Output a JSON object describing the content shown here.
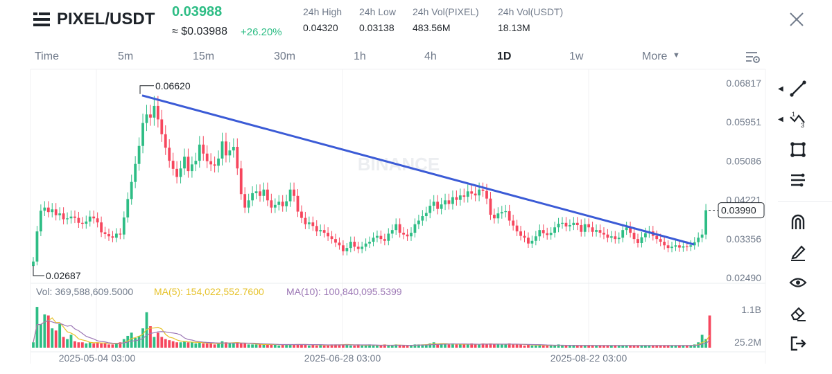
{
  "header": {
    "pair": "PIXEL/USDT",
    "last_price": "0.03988",
    "usd_price": "≈ $0.03988",
    "change": "+26.20%",
    "stats": [
      {
        "label": "24h High",
        "value": "0.04320"
      },
      {
        "label": "24h Low",
        "value": "0.03138"
      },
      {
        "label": "24h Vol(PIXEL)",
        "value": "483.56M"
      },
      {
        "label": "24h Vol(USDT)",
        "value": "18.13M"
      }
    ]
  },
  "timeframes": [
    "Time",
    "5m",
    "15m",
    "30m",
    "1h",
    "4h",
    "1D",
    "1w",
    "More"
  ],
  "active_timeframe": "1D",
  "price_axis": [
    "0.06817",
    "0.05951",
    "0.05086",
    "0.04221",
    "0.03356",
    "0.02490"
  ],
  "current_price_tag": "0.03990",
  "annotations": {
    "high": "0.06620",
    "low": "0.02687"
  },
  "watermark": "BINANCE",
  "volume": {
    "vol": "Vol: 369,588,609.5000",
    "ma5": "MA(5): 154,022,552.7600",
    "ma10": "MA(10): 100,840,095.5399",
    "axis": [
      "1.1B",
      "25.2M"
    ]
  },
  "date_axis": [
    "2025-05-04 03:00",
    "2025-06-28 03:00",
    "2025-08-22 03:00"
  ],
  "toolbar": [
    "trendline-tool",
    "fibonacci-tool",
    "rectangle-tool",
    "parallel-lines-tool",
    "magnet-tool",
    "pencil-tool",
    "eye-tool",
    "eraser-tool",
    "exit-tool"
  ],
  "colors": {
    "up": "#2ebd85",
    "down": "#f6465d",
    "trend": "#3b5bd6",
    "ma5": "#e6c229",
    "ma10": "#9c77b5"
  },
  "chart_data": {
    "type": "candlestick",
    "ylim": [
      0.0249,
      0.06817
    ],
    "trendline": [
      {
        "x": "2025-04-29",
        "y": 0.0662
      },
      {
        "x": "2025-09-14",
        "y": 0.0326
      }
    ],
    "closes": [
      0.0285,
      0.0352,
      0.0398,
      0.0405,
      0.0395,
      0.0401,
      0.0388,
      0.0392,
      0.0379,
      0.0381,
      0.0385,
      0.0382,
      0.0371,
      0.0369,
      0.0374,
      0.0385,
      0.0381,
      0.0372,
      0.035,
      0.0346,
      0.0341,
      0.0338,
      0.0347,
      0.0345,
      0.0383,
      0.0424,
      0.0462,
      0.0502,
      0.0542,
      0.0593,
      0.0612,
      0.0605,
      0.0631,
      0.0601,
      0.0568,
      0.0538,
      0.0509,
      0.0491,
      0.0473,
      0.0492,
      0.0518,
      0.0486,
      0.0501,
      0.0509,
      0.0545,
      0.0525,
      0.0508,
      0.0501,
      0.0498,
      0.0514,
      0.0552,
      0.0521,
      0.0532,
      0.054,
      0.0492,
      0.0435,
      0.0405,
      0.0421,
      0.0437,
      0.0441,
      0.0431,
      0.0445,
      0.0421,
      0.0405,
      0.0411,
      0.0418,
      0.0408,
      0.0419,
      0.0445,
      0.0431,
      0.0396,
      0.0382,
      0.0368,
      0.0372,
      0.0364,
      0.0352,
      0.0355,
      0.0349,
      0.0341,
      0.0335,
      0.0327,
      0.0321,
      0.0308,
      0.0315,
      0.0329,
      0.0318,
      0.0313,
      0.0318,
      0.0325,
      0.0329,
      0.0338,
      0.0342,
      0.0335,
      0.0331,
      0.0347,
      0.0355,
      0.0368,
      0.0349,
      0.0345,
      0.0341,
      0.0349,
      0.0368,
      0.0376,
      0.0386,
      0.0393,
      0.0409,
      0.0418,
      0.0402,
      0.0412,
      0.0421,
      0.0413,
      0.0428,
      0.0422,
      0.0432,
      0.0429,
      0.0441,
      0.0436,
      0.0432,
      0.0445,
      0.0442,
      0.0425,
      0.0389,
      0.0381,
      0.0392,
      0.0395,
      0.0397,
      0.0376,
      0.0365,
      0.0352,
      0.0342,
      0.0338,
      0.0325,
      0.0331,
      0.0341,
      0.0355,
      0.0348,
      0.0344,
      0.0349,
      0.0361,
      0.0369,
      0.0371,
      0.0363,
      0.0366,
      0.0371,
      0.0366,
      0.0351,
      0.0368,
      0.0361,
      0.0351,
      0.0355,
      0.0349,
      0.0345,
      0.0338,
      0.0341,
      0.0335,
      0.0338,
      0.0355,
      0.0361,
      0.0349,
      0.0335,
      0.0326,
      0.0339,
      0.0348,
      0.0352,
      0.0342,
      0.0335,
      0.0329,
      0.0321,
      0.0315,
      0.0318,
      0.0321,
      0.0316,
      0.0319,
      0.0318,
      0.0321,
      0.0328,
      0.0338,
      0.0345,
      0.0399
    ],
    "volumes": [
      0.05,
      0.38,
      0.22,
      0.31,
      0.3,
      0.18,
      0.16,
      0.22,
      0.1,
      0.08,
      0.12,
      0.06,
      0.05,
      0.05,
      0.04,
      0.05,
      0.04,
      0.05,
      0.04,
      0.04,
      0.03,
      0.03,
      0.04,
      0.05,
      0.08,
      0.11,
      0.14,
      0.09,
      0.11,
      0.18,
      0.33,
      0.2,
      0.1,
      0.14,
      0.1,
      0.08,
      0.07,
      0.06,
      0.05,
      0.05,
      0.06,
      0.05,
      0.05,
      0.04,
      0.05,
      0.04,
      0.04,
      0.04,
      0.03,
      0.04,
      0.06,
      0.05,
      0.04,
      0.04,
      0.05,
      0.04,
      0.04,
      0.03,
      0.03,
      0.03,
      0.03,
      0.03,
      0.03,
      0.03,
      0.03,
      0.02,
      0.03,
      0.03,
      0.03,
      0.03,
      0.03,
      0.03,
      0.03,
      0.02,
      0.03,
      0.02,
      0.03,
      0.02,
      0.02,
      0.03,
      0.03,
      0.03,
      0.03,
      0.03,
      0.02,
      0.02,
      0.03,
      0.02,
      0.02,
      0.03,
      0.02,
      0.02,
      0.02,
      0.03,
      0.02,
      0.02,
      0.03,
      0.02,
      0.02,
      0.02,
      0.02,
      0.03,
      0.03,
      0.03,
      0.03,
      0.04,
      0.05,
      0.03,
      0.04,
      0.03,
      0.03,
      0.04,
      0.03,
      0.03,
      0.03,
      0.03,
      0.04,
      0.03,
      0.03,
      0.04,
      0.03,
      0.04,
      0.03,
      0.03,
      0.03,
      0.03,
      0.04,
      0.03,
      0.03,
      0.03,
      0.02,
      0.03,
      0.02,
      0.02,
      0.03,
      0.02,
      0.02,
      0.02,
      0.02,
      0.03,
      0.02,
      0.02,
      0.02,
      0.02,
      0.02,
      0.02,
      0.02,
      0.02,
      0.02,
      0.02,
      0.02,
      0.02,
      0.02,
      0.02,
      0.02,
      0.02,
      0.02,
      0.02,
      0.02,
      0.02,
      0.02,
      0.02,
      0.02,
      0.02,
      0.02,
      0.02,
      0.02,
      0.02,
      0.02,
      0.02,
      0.02,
      0.02,
      0.02,
      0.02,
      0.02,
      0.03,
      0.05,
      0.12,
      0.08,
      0.3
    ]
  }
}
